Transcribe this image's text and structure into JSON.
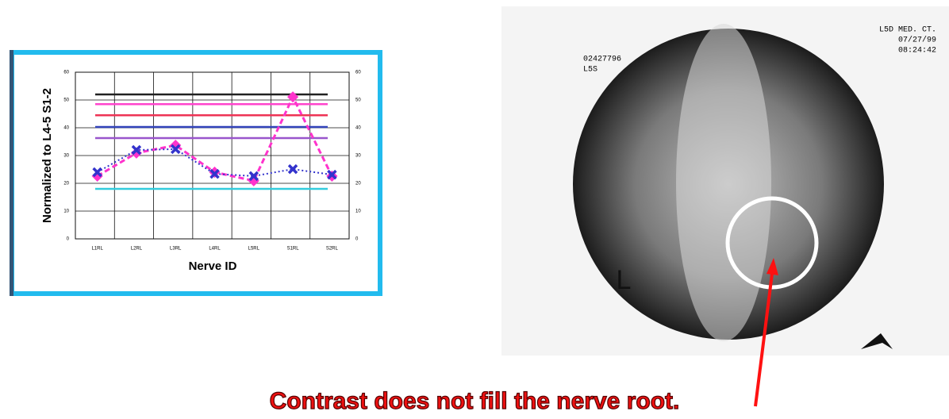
{
  "chart_data": {
    "type": "line",
    "ylabel": "Normalized to L4-5 S1-2",
    "xlabel": "Nerve ID",
    "categories": [
      "L1RL",
      "L2RL",
      "L3RL",
      "L4RL",
      "L5RL",
      "S1RL",
      "S2RL"
    ],
    "series": [
      {
        "color": "#ff33cc",
        "values": [
          22.6,
          30.9,
          33.7,
          24,
          20.9,
          51.1,
          22.6
        ]
      },
      {
        "color": "#3333cc",
        "values": [
          24,
          32,
          32.3,
          23.4,
          22.6,
          25.1,
          23.1
        ]
      }
    ],
    "reference_lines": [
      {
        "value": 52,
        "color": "#222222"
      },
      {
        "value": 48.5,
        "color": "#ff44cc"
      },
      {
        "value": 44.5,
        "color": "#ee3355"
      },
      {
        "value": 40.3,
        "color": "#3344bb"
      },
      {
        "value": 36.3,
        "color": "#9955cc"
      },
      {
        "value": 18,
        "color": "#33ccdd"
      }
    ],
    "ylim": [
      0,
      60
    ],
    "yticks": [
      0,
      10,
      20,
      30,
      40,
      50,
      60
    ],
    "y2lim": [
      0,
      60
    ],
    "y2ticks": [
      0,
      10,
      20,
      30,
      40,
      50,
      60
    ],
    "grid": true
  },
  "xray": {
    "labels": [
      "02427796",
      "L5S",
      "L5D MED. CT.",
      "07/27/99",
      "08:24:42",
      "L"
    ]
  },
  "caption": "Contrast does not fill the nerve root."
}
